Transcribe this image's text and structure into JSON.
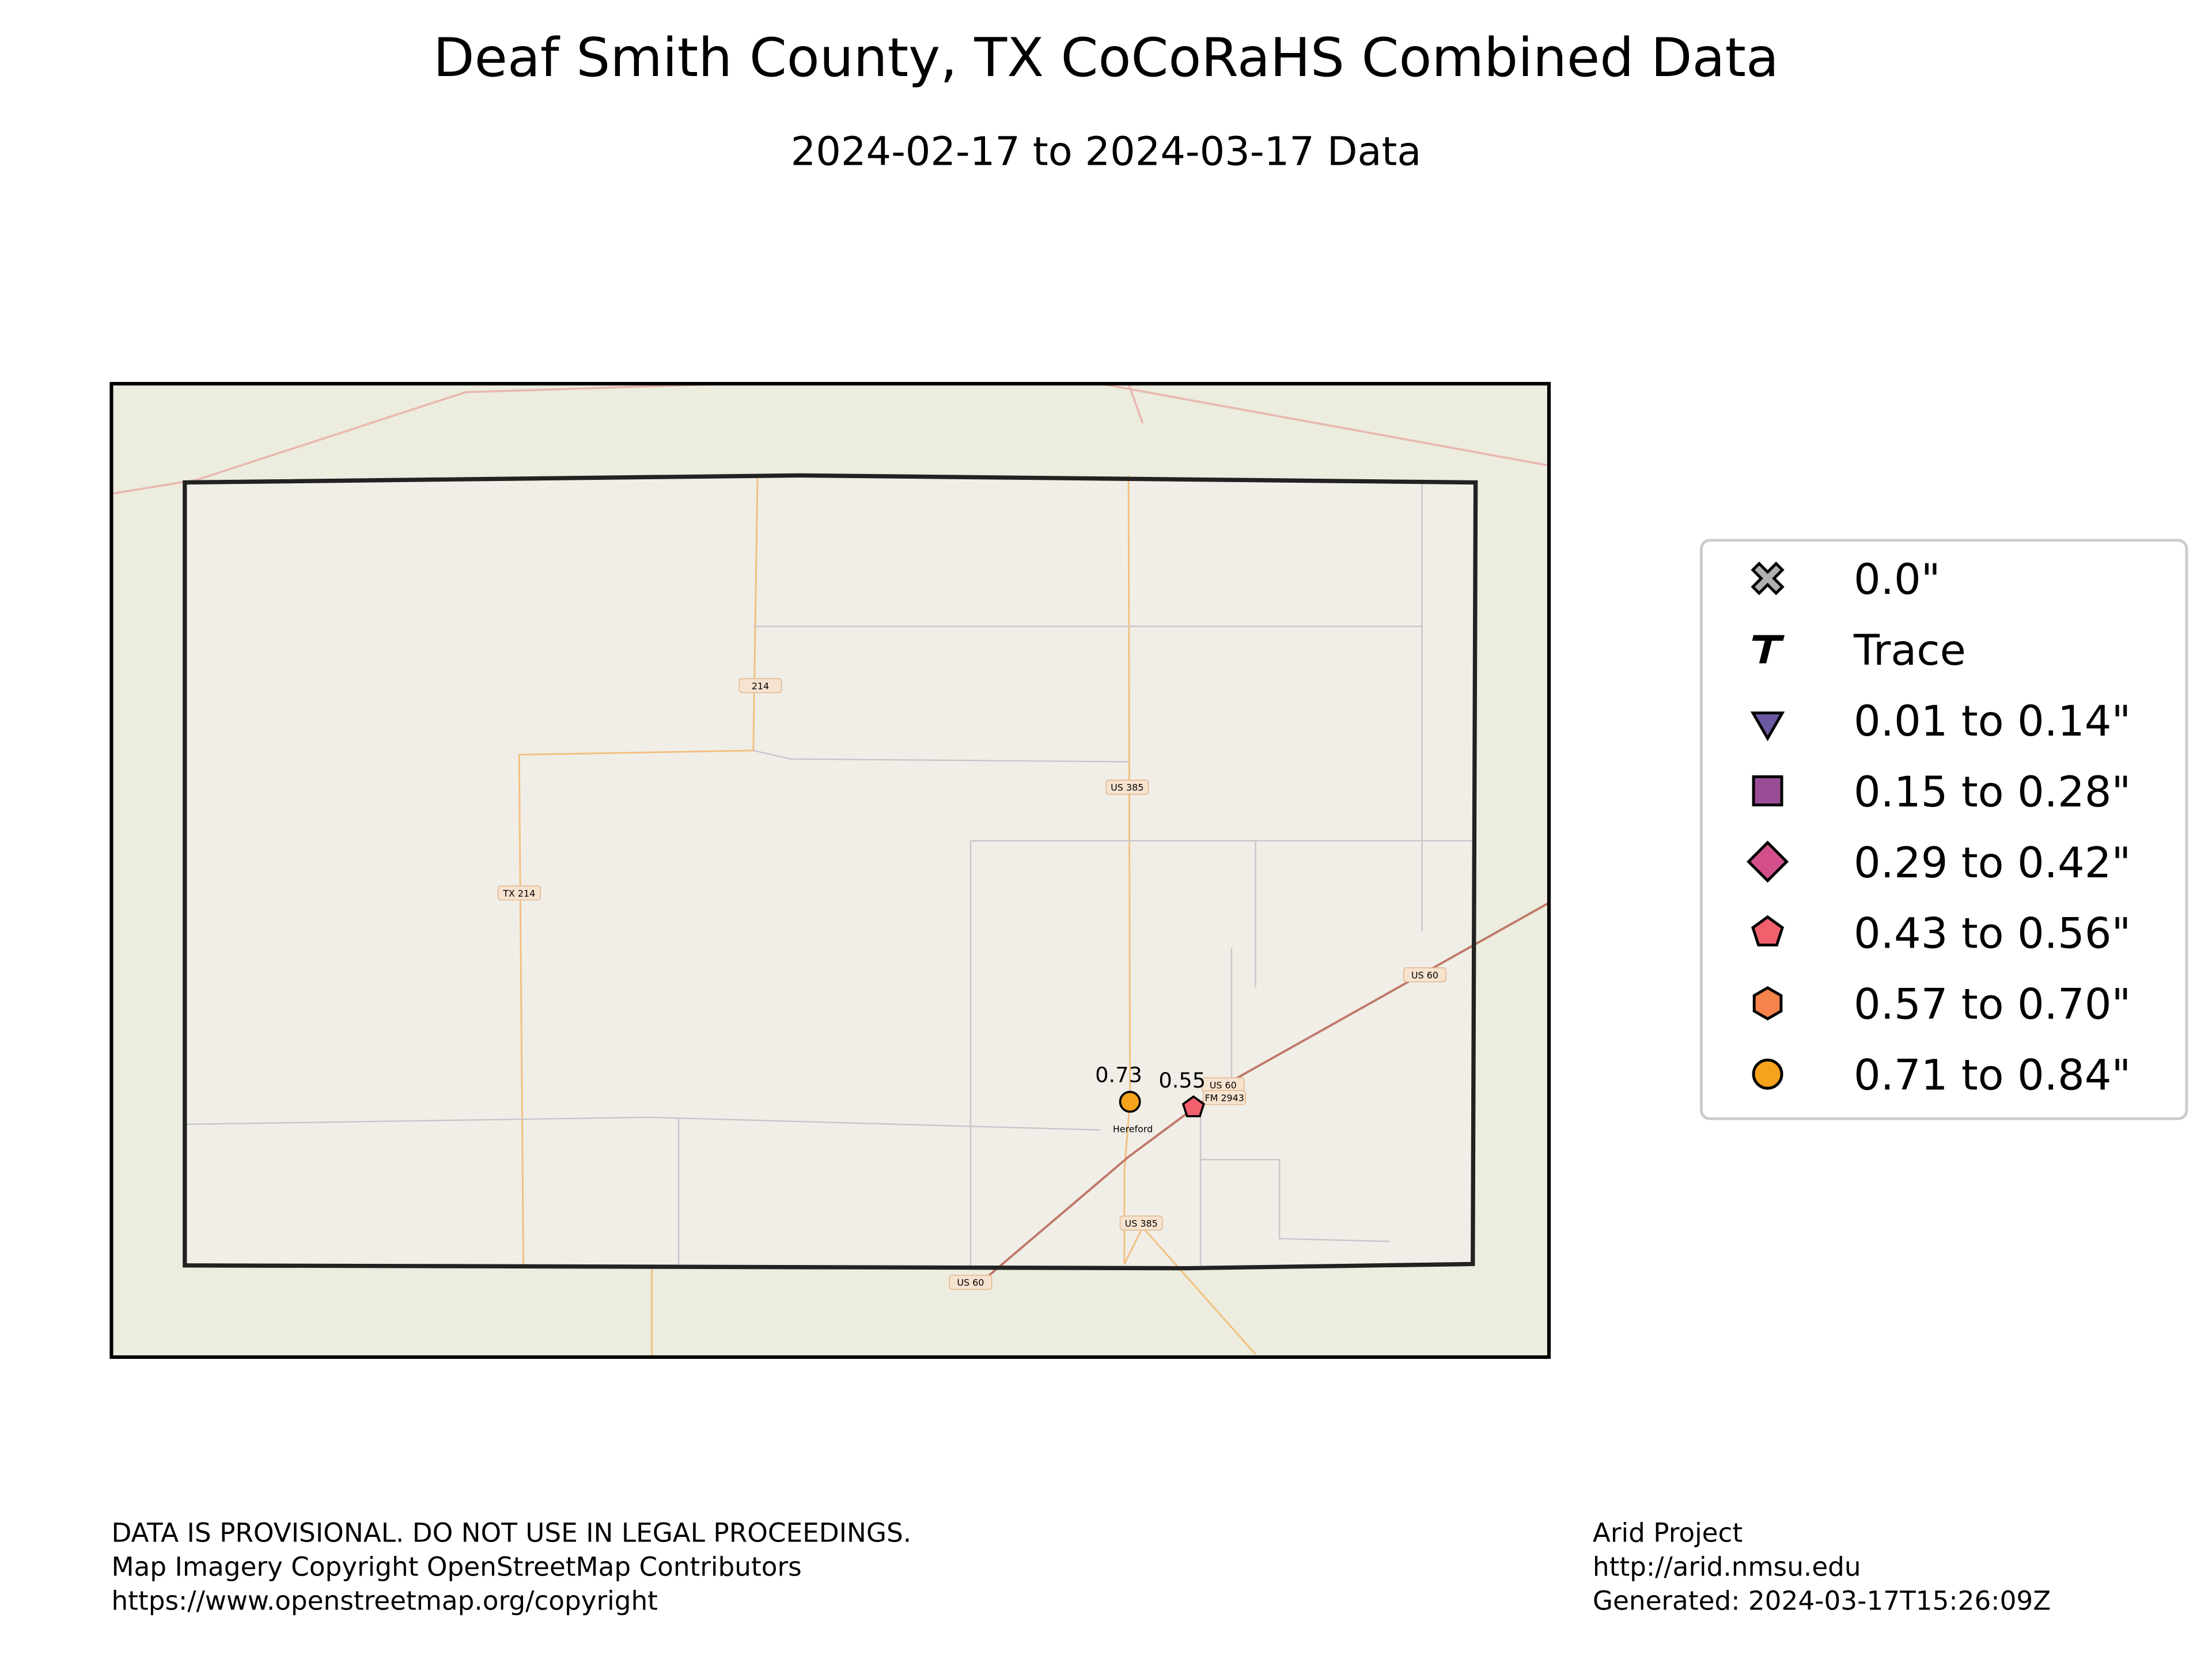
{
  "title": "Deaf Smith County, TX CoCoRaHS Combined Data",
  "subtitle": "2024-02-17 to 2024-03-17 Data",
  "map": {
    "road_labels": [
      "214",
      "US 385",
      "TX 214",
      "US 60",
      "US 60",
      "FM 2943",
      "Hereford",
      "US 385",
      "US 60"
    ],
    "stations": [
      {
        "value": 0.73,
        "symbol": "circle",
        "color": "#f5a31d"
      },
      {
        "value": 0.55,
        "symbol": "pentagon",
        "color": "#f2606e"
      }
    ]
  },
  "legend": [
    {
      "label": "0.0\"",
      "symbol": "x",
      "color": "#b0b0b0"
    },
    {
      "label": "Trace",
      "symbol": "t",
      "color": "#000000"
    },
    {
      "label": "0.01 to 0.14\"",
      "symbol": "triangle",
      "color": "#6c57a3"
    },
    {
      "label": "0.15 to 0.28\"",
      "symbol": "square",
      "color": "#9a4d97"
    },
    {
      "label": "0.29 to 0.42\"",
      "symbol": "diamond",
      "color": "#d24f8c"
    },
    {
      "label": "0.43 to 0.56\"",
      "symbol": "pentagon",
      "color": "#f2606e"
    },
    {
      "label": "0.57 to 0.70\"",
      "symbol": "hexagon",
      "color": "#f7834c"
    },
    {
      "label": "0.71 to 0.84\"",
      "symbol": "circle",
      "color": "#f5a31d"
    }
  ],
  "footer": {
    "left": [
      "DATA IS PROVISIONAL. DO NOT USE IN LEGAL PROCEEDINGS.",
      "Map Imagery Copyright OpenStreetMap Contributors",
      "https://www.openstreetmap.org/copyright"
    ],
    "right": [
      "Arid Project",
      "http://arid.nmsu.edu",
      "Generated: 2024-03-17T15:26:09Z"
    ]
  }
}
